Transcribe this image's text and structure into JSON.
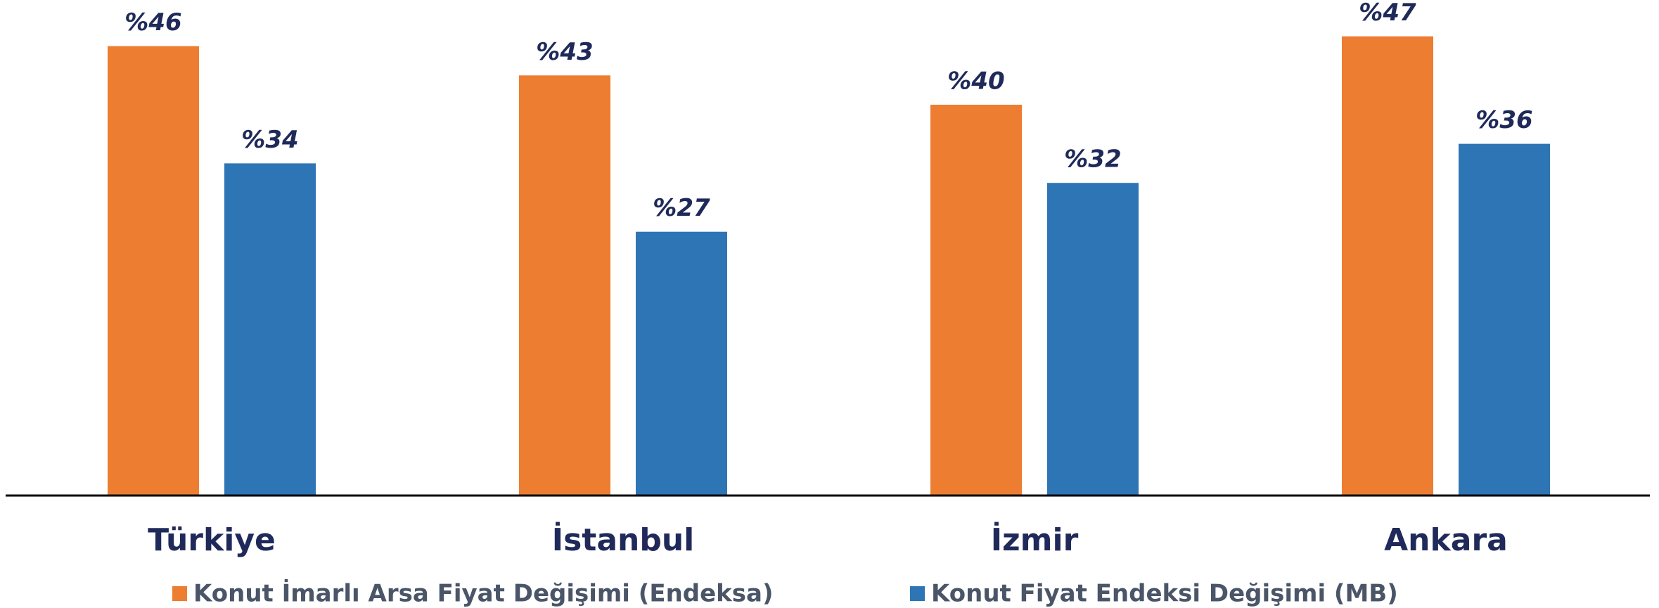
{
  "chart_data": {
    "type": "bar",
    "categories": [
      "Türkiye",
      "İstanbul",
      "İzmir",
      "Ankara"
    ],
    "series": [
      {
        "name": "Konut İmarlı Arsa Fiyat Değişimi (Endeksa)",
        "color": "#ed7d31",
        "values": [
          46,
          43,
          40,
          47
        ],
        "value_labels": [
          "%46",
          "%43",
          "%40",
          "%47"
        ]
      },
      {
        "name": "Konut Fiyat Endeksi Değişimi (MB)",
        "color": "#2e75b6",
        "values": [
          34,
          27,
          32,
          36
        ],
        "value_labels": [
          "%34",
          "%27",
          "%32",
          "%36"
        ]
      }
    ]
  }
}
